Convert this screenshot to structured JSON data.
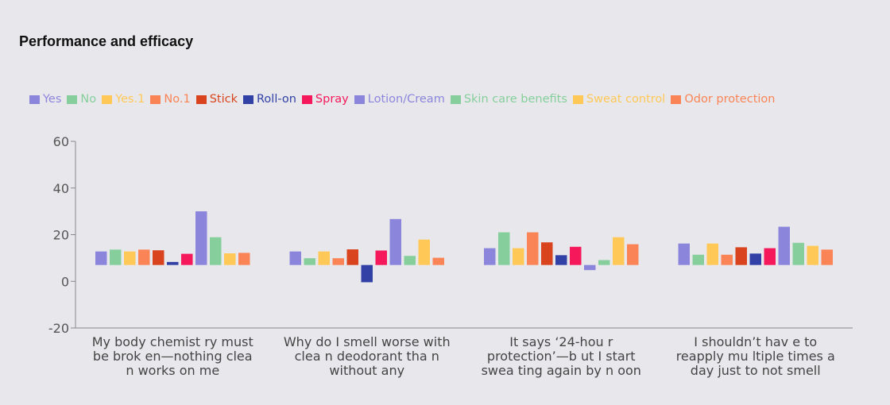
{
  "chart_data": {
    "type": "bar",
    "title": "Performance and efficacy",
    "xlabel": "",
    "ylabel": "",
    "ylim": [
      -20,
      60
    ],
    "yticks": [
      60,
      40,
      20,
      0,
      -20
    ],
    "grid": false,
    "legend_position": "top",
    "baseline": 7,
    "categories": [
      [
        "My body chemist ry must",
        "be brok en—nothing clea",
        "n works on me"
      ],
      [
        "Why do I smell worse with",
        "clea n deodorant tha n",
        "without any"
      ],
      [
        "It says ‘24-hou r",
        "protection’—b ut I start",
        "swea ting again by n oon"
      ],
      [
        "I shouldn’t hav e to",
        "reapply mu ltiple times a",
        "day just to not smell"
      ]
    ],
    "series": [
      {
        "name": "Yes",
        "color": "#8b86dc",
        "values": [
          12.8,
          12.8,
          14.2,
          16.2
        ]
      },
      {
        "name": "No",
        "color": "#86cf9c",
        "values": [
          13.6,
          9.9,
          21.0,
          11.4
        ]
      },
      {
        "name": "Yes.1",
        "color": "#ffc857",
        "values": [
          12.8,
          12.8,
          14.2,
          16.2
        ]
      },
      {
        "name": "No.1",
        "color": "#fa8456",
        "values": [
          13.6,
          9.9,
          21.0,
          11.4
        ]
      },
      {
        "name": "Stick",
        "color": "#d9441e",
        "values": [
          13.3,
          13.7,
          16.7,
          14.6
        ]
      },
      {
        "name": "Roll-on",
        "color": "#3241a6",
        "values": [
          8.3,
          -0.4,
          11.2,
          11.9
        ]
      },
      {
        "name": "Spray",
        "color": "#f5195c",
        "values": [
          11.8,
          13.2,
          14.8,
          14.2
        ]
      },
      {
        "name": "Lotion/Cream",
        "color": "#8b86dc",
        "values": [
          30.0,
          26.7,
          4.8,
          23.4
        ]
      },
      {
        "name": "Skin care benefits",
        "color": "#86cf9c",
        "values": [
          18.9,
          10.9,
          9.1,
          16.5
        ]
      },
      {
        "name": "Sweat control",
        "color": "#ffc857",
        "values": [
          12.0,
          17.9,
          18.9,
          15.2
        ]
      },
      {
        "name": "Odor protection",
        "color": "#fa8456",
        "values": [
          12.2,
          10.1,
          15.9,
          13.6
        ]
      }
    ]
  }
}
